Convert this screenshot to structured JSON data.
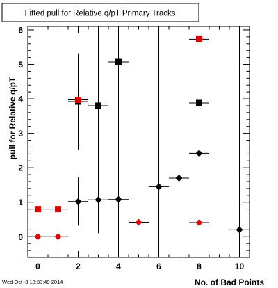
{
  "title": "Fitted pull for Relative q/pT Primary Tracks",
  "timestamp": "Wed Oct  8 18:33:49 2014",
  "colors": {
    "black": "#000000",
    "red": "#e00000",
    "frame": "#000000",
    "background": "#ffffff"
  },
  "chart_data": {
    "type": "scatter",
    "title": "Fitted pull for Relative q/pT Primary Tracks",
    "xlabel": "No. of Bad Points",
    "ylabel": "pull for Relative q/pT",
    "xlim": [
      -0.5,
      10.5
    ],
    "ylim": [
      -0.6,
      6.1
    ],
    "x_ticks": [
      0,
      2,
      4,
      6,
      8,
      10
    ],
    "y_ticks": [
      0,
      1,
      2,
      3,
      4,
      5,
      6
    ],
    "grid": false,
    "series": [
      {
        "marker": "square",
        "color": "#000000",
        "points": [
          {
            "x": 2,
            "y": 3.92,
            "xerr": 0.5,
            "yerr": 1.4
          },
          {
            "x": 3,
            "y": 3.8,
            "xerr": 0.5,
            "yerr": 3.7
          },
          {
            "x": 4,
            "y": 5.07,
            "xerr": 0.5,
            "yerr": 5.9
          },
          {
            "x": 8,
            "y": 3.88,
            "xerr": 0.5,
            "yerr": 4.5
          }
        ]
      },
      {
        "marker": "square",
        "color": "#e00000",
        "points": [
          {
            "x": 0,
            "y": 0.8,
            "xerr": 0.5,
            "yerr": 0
          },
          {
            "x": 1,
            "y": 0.8,
            "xerr": 0.5,
            "yerr": 0
          },
          {
            "x": 2,
            "y": 3.97,
            "xerr": 0.5,
            "yerr": 0
          },
          {
            "x": 8,
            "y": 5.73,
            "xerr": 0.5,
            "yerr": 0
          }
        ]
      },
      {
        "marker": "diamond",
        "color": "#000000",
        "points": [
          {
            "x": 2,
            "y": 1.02,
            "xerr": 0.5,
            "yerr": 0.7
          },
          {
            "x": 3,
            "y": 1.07,
            "xerr": 0.5,
            "yerr": 0.95
          },
          {
            "x": 4,
            "y": 1.08,
            "xerr": 0.5,
            "yerr": 5.0
          },
          {
            "x": 6,
            "y": 1.45,
            "xerr": 0.5,
            "yerr": 5.0
          },
          {
            "x": 7,
            "y": 1.7,
            "xerr": 0.5,
            "yerr": 5.0
          },
          {
            "x": 8,
            "y": 2.42,
            "xerr": 0.5,
            "yerr": 5.0
          },
          {
            "x": 10,
            "y": 0.2,
            "xerr": 0.5,
            "yerr": 6.0
          }
        ]
      },
      {
        "marker": "diamond",
        "color": "#e00000",
        "points": [
          {
            "x": 0,
            "y": 0.0,
            "xerr": 0.5,
            "yerr": 0
          },
          {
            "x": 1,
            "y": 0.0,
            "xerr": 0.5,
            "yerr": 0
          },
          {
            "x": 5,
            "y": 0.42,
            "xerr": 0.5,
            "yerr": 0
          },
          {
            "x": 8,
            "y": 0.41,
            "xerr": 0.5,
            "yerr": 0
          }
        ]
      }
    ]
  }
}
